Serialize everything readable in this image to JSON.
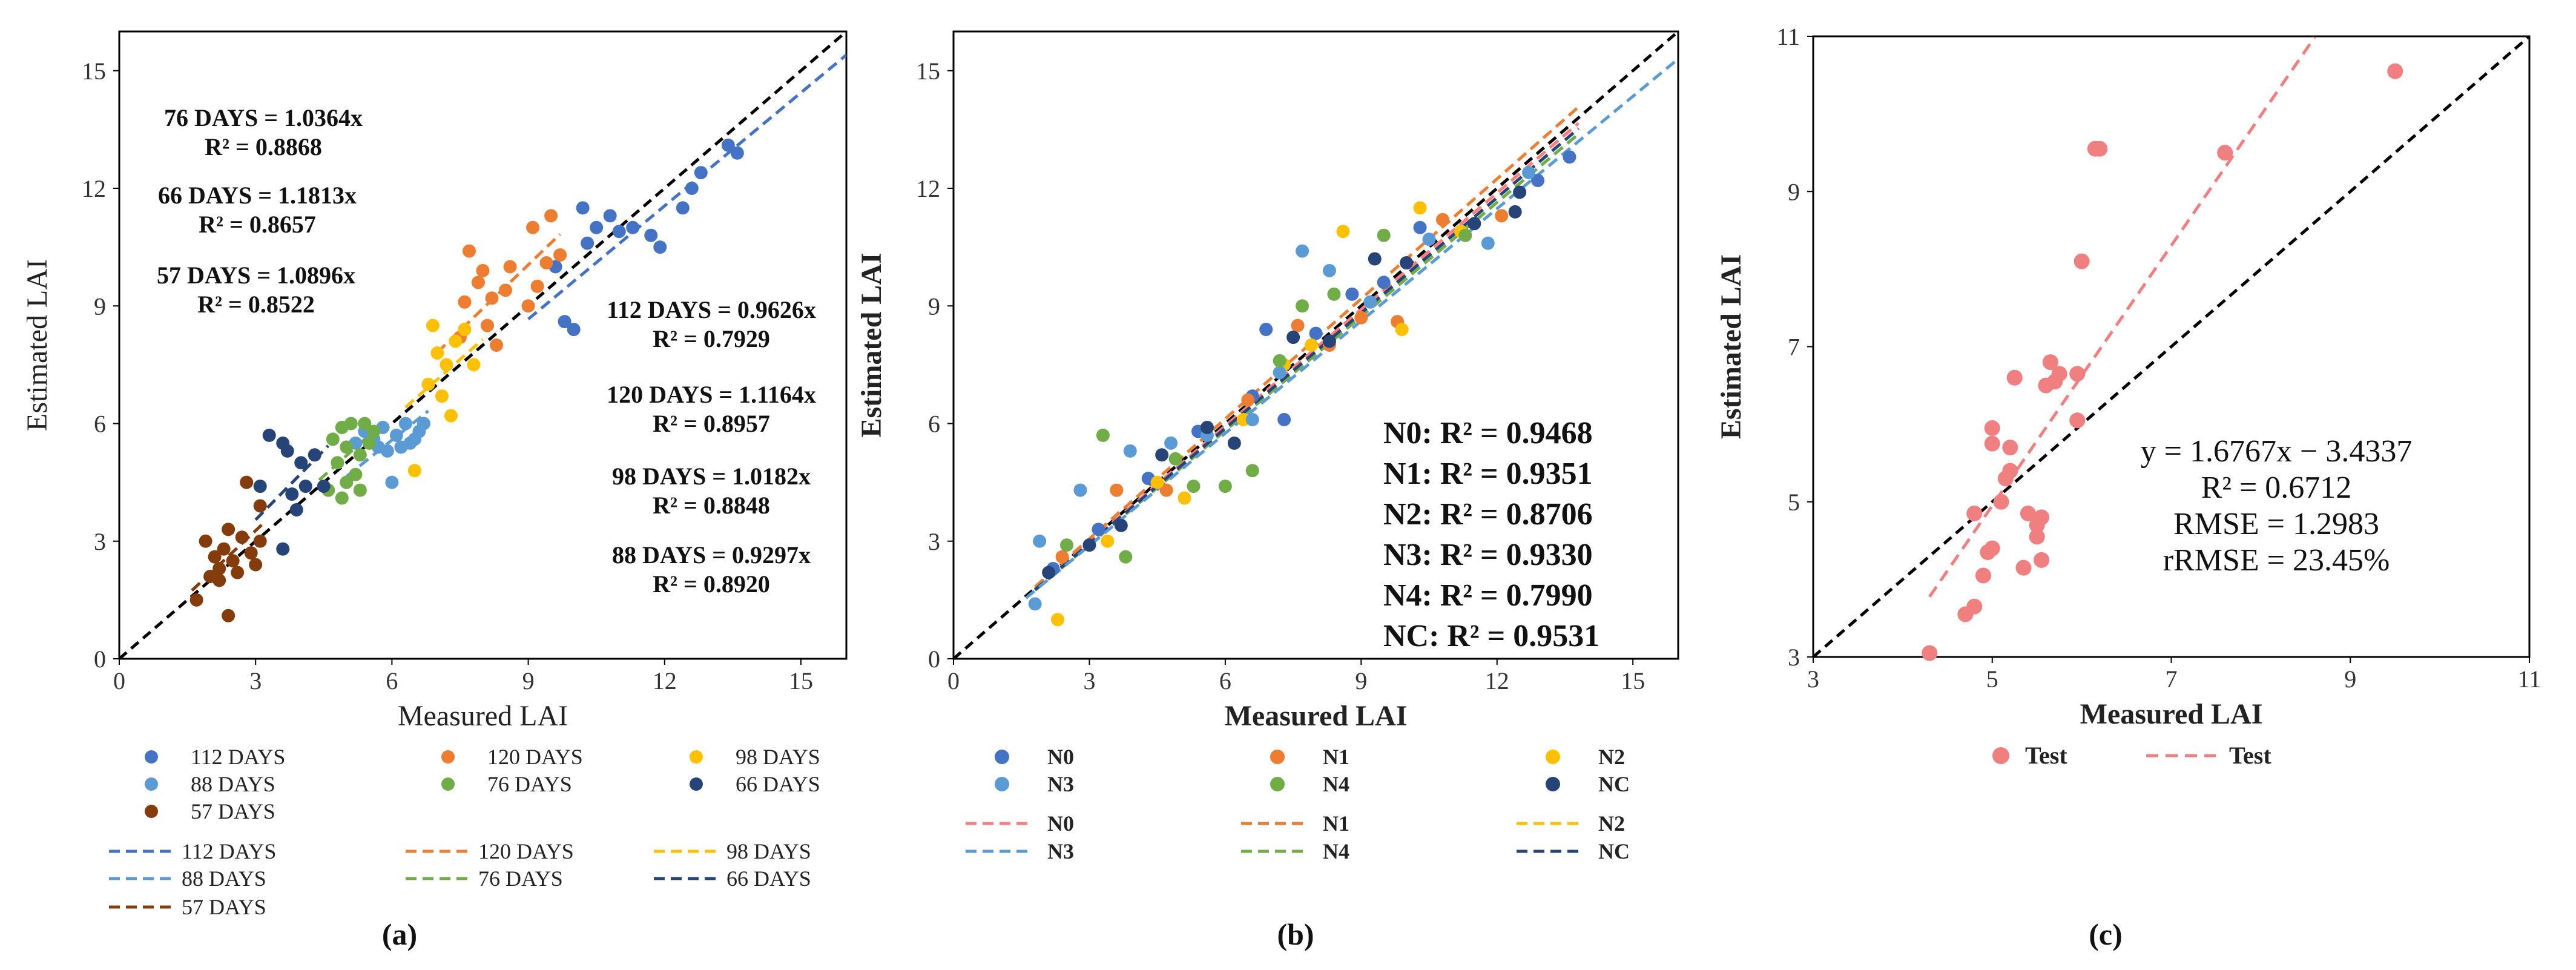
{
  "colors": {
    "c112": "#4472C4",
    "c120": "#ED7D31",
    "c98": "#FFC000",
    "c88": "#5B9BD5",
    "c76": "#70AD47",
    "c66": "#264478",
    "c57": "#843C0C",
    "n0": "#4472C4",
    "n1": "#ED7D31",
    "n2": "#FFC000",
    "n3": "#5B9BD5",
    "n4": "#70AD47",
    "nc": "#264478",
    "n0line": "#FF7C80",
    "test": "#F08080",
    "axis": "#000000",
    "ref": "#000000"
  },
  "chart_data": [
    {
      "id": "a",
      "type": "scatter",
      "panel_label": "(a)",
      "xlabel": "Measured LAI",
      "ylabel": "Estimated LAI",
      "xlim": [
        0,
        16
      ],
      "ylim": [
        0,
        16
      ],
      "xticks": [
        0,
        3,
        6,
        9,
        12,
        15
      ],
      "yticks": [
        0,
        3,
        6,
        9,
        12,
        15
      ],
      "tick_labels": [
        "0",
        "3",
        "6",
        "9",
        "12",
        "15"
      ],
      "reference_line": "1:1",
      "series": [
        {
          "name": "112 DAYS",
          "color_key": "c112",
          "slope": 0.9626,
          "r2": "0.7929",
          "eq_label": "112 DAYS = 0.9626x",
          "r2_label": "R² = 0.7929",
          "points": [
            [
              9.6,
              10.0
            ],
            [
              9.8,
              8.6
            ],
            [
              10.0,
              8.4
            ],
            [
              10.2,
              11.5
            ],
            [
              10.5,
              11.0
            ],
            [
              10.8,
              11.3
            ],
            [
              11.0,
              10.9
            ],
            [
              11.3,
              11.0
            ],
            [
              11.7,
              10.8
            ],
            [
              11.9,
              10.5
            ],
            [
              12.4,
              11.5
            ],
            [
              12.6,
              12.0
            ],
            [
              12.8,
              12.4
            ],
            [
              13.4,
              13.1
            ],
            [
              13.6,
              12.9
            ],
            [
              10.3,
              10.6
            ]
          ]
        },
        {
          "name": "120 DAYS",
          "color_key": "c120",
          "slope": 1.1164,
          "r2": "0.8957",
          "eq_label": "120 DAYS = 1.1164x",
          "r2_label": "R² = 0.8957",
          "points": [
            [
              7.5,
              8.2
            ],
            [
              7.6,
              9.1
            ],
            [
              7.7,
              10.4
            ],
            [
              7.9,
              9.6
            ],
            [
              8.0,
              9.9
            ],
            [
              8.1,
              8.5
            ],
            [
              8.2,
              9.2
            ],
            [
              8.3,
              8.0
            ],
            [
              8.5,
              9.4
            ],
            [
              8.6,
              10.0
            ],
            [
              9.0,
              9.0
            ],
            [
              9.1,
              11.0
            ],
            [
              9.2,
              9.5
            ],
            [
              9.4,
              10.1
            ],
            [
              9.5,
              11.3
            ],
            [
              9.7,
              10.3
            ]
          ]
        },
        {
          "name": "98 DAYS",
          "color_key": "c98",
          "slope": 1.0182,
          "r2": "0.8848",
          "eq_label": "98 DAYS = 1.0182x",
          "r2_label": "R² = 0.8848",
          "points": [
            [
              6.5,
              4.8
            ],
            [
              6.8,
              7.0
            ],
            [
              6.9,
              8.5
            ],
            [
              7.0,
              7.8
            ],
            [
              7.1,
              6.7
            ],
            [
              7.2,
              7.5
            ],
            [
              7.3,
              6.2
            ],
            [
              7.4,
              8.1
            ],
            [
              7.6,
              8.4
            ],
            [
              7.8,
              7.5
            ]
          ]
        },
        {
          "name": "88 DAYS",
          "color_key": "c88",
          "slope": 0.9297,
          "r2": "0.8920",
          "eq_label": "88 DAYS = 0.9297x",
          "r2_label": "R² = 0.8920",
          "points": [
            [
              5.2,
              5.5
            ],
            [
              5.4,
              5.8
            ],
            [
              5.6,
              5.6
            ],
            [
              5.8,
              5.9
            ],
            [
              5.9,
              5.3
            ],
            [
              6.0,
              4.5
            ],
            [
              6.1,
              5.7
            ],
            [
              6.2,
              5.4
            ],
            [
              6.3,
              6.0
            ],
            [
              6.4,
              5.5
            ],
            [
              6.5,
              5.6
            ],
            [
              6.6,
              5.8
            ],
            [
              6.7,
              6.0
            ],
            [
              5.7,
              5.4
            ]
          ]
        },
        {
          "name": "76 DAYS",
          "color_key": "c76",
          "slope": 1.0364,
          "r2": "0.8868",
          "eq_label": "76 DAYS = 1.0364x",
          "r2_label": "R² = 0.8868",
          "points": [
            [
              4.6,
              4.3
            ],
            [
              4.7,
              5.6
            ],
            [
              4.8,
              5.0
            ],
            [
              4.9,
              5.9
            ],
            [
              5.0,
              4.5
            ],
            [
              5.0,
              5.4
            ],
            [
              5.1,
              6.0
            ],
            [
              5.2,
              4.7
            ],
            [
              5.3,
              5.2
            ],
            [
              5.3,
              4.3
            ],
            [
              5.4,
              6.0
            ],
            [
              5.5,
              5.5
            ],
            [
              5.6,
              5.8
            ],
            [
              4.9,
              4.1
            ]
          ]
        },
        {
          "name": "66 DAYS",
          "color_key": "c66",
          "slope": 1.1813,
          "r2": "0.8657",
          "eq_label": "66 DAYS = 1.1813x",
          "r2_label": "R² = 0.8657",
          "points": [
            [
              3.1,
              4.4
            ],
            [
              3.3,
              5.7
            ],
            [
              3.6,
              5.5
            ],
            [
              3.6,
              2.8
            ],
            [
              3.8,
              4.2
            ],
            [
              3.9,
              3.8
            ],
            [
              4.0,
              5.0
            ],
            [
              4.1,
              4.4
            ],
            [
              4.3,
              5.2
            ],
            [
              4.5,
              4.4
            ],
            [
              3.7,
              5.3
            ]
          ]
        },
        {
          "name": "57 DAYS",
          "color_key": "c57",
          "slope": 1.0896,
          "r2": "0.8522",
          "eq_label": "57 DAYS = 1.0896x",
          "r2_label": "R² = 0.8522",
          "points": [
            [
              1.7,
              1.5
            ],
            [
              1.9,
              3.0
            ],
            [
              2.0,
              2.1
            ],
            [
              2.1,
              2.6
            ],
            [
              2.2,
              2.3
            ],
            [
              2.3,
              2.8
            ],
            [
              2.4,
              3.3
            ],
            [
              2.4,
              1.1
            ],
            [
              2.5,
              2.5
            ],
            [
              2.6,
              2.2
            ],
            [
              2.7,
              3.1
            ],
            [
              2.8,
              4.5
            ],
            [
              2.9,
              2.7
            ],
            [
              3.0,
              2.4
            ],
            [
              3.1,
              3.0
            ],
            [
              3.1,
              3.9
            ],
            [
              2.2,
              2.0
            ]
          ]
        }
      ]
    },
    {
      "id": "b",
      "type": "scatter",
      "panel_label": "(b)",
      "xlabel": "Measured LAI",
      "ylabel": "Estimated LAI",
      "xlim": [
        0,
        16
      ],
      "ylim": [
        0,
        16
      ],
      "xticks": [
        0,
        3,
        6,
        9,
        12,
        15
      ],
      "yticks": [
        0,
        3,
        6,
        9,
        12,
        15
      ],
      "tick_labels": [
        "0",
        "3",
        "6",
        "9",
        "12",
        "15"
      ],
      "reference_line": "1:1",
      "series": [
        {
          "name": "N0",
          "color_key": "n0",
          "line_color_key": "n0line",
          "slope": 0.99,
          "r2": "0.9468",
          "r2_label": "N0: R² = 0.9468",
          "points": [
            [
              2.2,
              2.3
            ],
            [
              3.2,
              3.3
            ],
            [
              4.3,
              4.6
            ],
            [
              5.4,
              5.8
            ],
            [
              6.6,
              6.7
            ],
            [
              6.9,
              8.4
            ],
            [
              7.3,
              6.1
            ],
            [
              8.0,
              8.3
            ],
            [
              8.8,
              9.3
            ],
            [
              9.5,
              9.6
            ],
            [
              10.3,
              11.0
            ],
            [
              12.9,
              12.2
            ],
            [
              13.6,
              12.8
            ]
          ]
        },
        {
          "name": "N1",
          "color_key": "n1",
          "line_color_key": "n1",
          "slope": 1.02,
          "r2": "0.9351",
          "r2_label": "N1: R² = 0.9351",
          "points": [
            [
              2.4,
              2.6
            ],
            [
              3.6,
              4.3
            ],
            [
              4.7,
              4.3
            ],
            [
              5.6,
              5.9
            ],
            [
              6.5,
              6.6
            ],
            [
              7.6,
              8.5
            ],
            [
              8.3,
              8.0
            ],
            [
              9.0,
              8.7
            ],
            [
              9.8,
              8.6
            ],
            [
              10.8,
              11.2
            ],
            [
              12.1,
              11.3
            ]
          ]
        },
        {
          "name": "N2",
          "color_key": "n2",
          "line_color_key": "n2",
          "slope": 0.98,
          "r2": "0.8706",
          "r2_label": "N2: R² = 0.8706",
          "points": [
            [
              2.3,
              1.0
            ],
            [
              3.4,
              3.0
            ],
            [
              4.5,
              4.5
            ],
            [
              5.1,
              4.1
            ],
            [
              6.4,
              6.1
            ],
            [
              7.3,
              7.5
            ],
            [
              7.9,
              8.0
            ],
            [
              8.6,
              10.9
            ],
            [
              9.9,
              8.4
            ],
            [
              10.3,
              11.5
            ],
            [
              11.2,
              10.9
            ]
          ]
        },
        {
          "name": "N3",
          "color_key": "n3",
          "line_color_key": "n3",
          "slope": 0.97,
          "r2": "0.9330",
          "r2_label": "N3: R² = 0.9330",
          "points": [
            [
              1.8,
              1.4
            ],
            [
              1.9,
              3.0
            ],
            [
              2.8,
              4.3
            ],
            [
              3.9,
              5.3
            ],
            [
              4.8,
              5.5
            ],
            [
              5.6,
              5.7
            ],
            [
              6.6,
              6.1
            ],
            [
              7.2,
              7.3
            ],
            [
              7.7,
              10.4
            ],
            [
              8.3,
              9.9
            ],
            [
              9.2,
              9.1
            ],
            [
              10.5,
              10.7
            ],
            [
              11.8,
              10.6
            ],
            [
              12.7,
              12.4
            ]
          ]
        },
        {
          "name": "N4",
          "color_key": "n4",
          "line_color_key": "n4",
          "slope": 0.97,
          "r2": "0.7990",
          "r2_label": "N4: R² = 0.7990",
          "points": [
            [
              2.5,
              2.9
            ],
            [
              3.3,
              5.7
            ],
            [
              3.8,
              2.6
            ],
            [
              4.9,
              5.1
            ],
            [
              5.3,
              4.4
            ],
            [
              6.0,
              4.4
            ],
            [
              6.6,
              4.8
            ],
            [
              7.2,
              7.6
            ],
            [
              7.7,
              9.0
            ],
            [
              8.4,
              9.3
            ],
            [
              9.5,
              10.8
            ],
            [
              11.3,
              10.8
            ]
          ]
        },
        {
          "name": "NC",
          "color_key": "nc",
          "line_color_key": "nc",
          "slope": 0.98,
          "r2": "0.9531",
          "r2_label": "NC: R² = 0.9531",
          "points": [
            [
              2.1,
              2.2
            ],
            [
              3.0,
              2.9
            ],
            [
              3.7,
              3.4
            ],
            [
              4.6,
              5.2
            ],
            [
              5.6,
              5.9
            ],
            [
              6.2,
              5.5
            ],
            [
              7.5,
              8.2
            ],
            [
              8.3,
              8.1
            ],
            [
              9.3,
              10.2
            ],
            [
              10.0,
              10.1
            ],
            [
              11.5,
              11.1
            ],
            [
              12.4,
              11.4
            ],
            [
              12.5,
              11.9
            ]
          ]
        }
      ]
    },
    {
      "id": "c",
      "type": "scatter",
      "panel_label": "(c)",
      "xlabel": "Measured LAI",
      "ylabel": "Estimated LAI",
      "xlim": [
        3,
        11
      ],
      "ylim": [
        3,
        11
      ],
      "xticks": [
        3,
        5,
        7,
        9,
        11
      ],
      "yticks": [
        3,
        5,
        7,
        9,
        11
      ],
      "tick_labels": [
        "3",
        "5",
        "7",
        "9",
        "11"
      ],
      "reference_line": "1:1",
      "series": [
        {
          "name": "Test",
          "color_key": "test",
          "fit": {
            "slope": 1.6767,
            "intercept": -3.4337,
            "x_from": 4.3,
            "x_to": 8.6
          },
          "points": [
            [
              4.3,
              3.05
            ],
            [
              4.7,
              3.55
            ],
            [
              4.8,
              3.65
            ],
            [
              4.9,
              4.05
            ],
            [
              4.95,
              4.35
            ],
            [
              5.0,
              4.4
            ],
            [
              4.8,
              4.85
            ],
            [
              5.1,
              5.0
            ],
            [
              5.15,
              5.3
            ],
            [
              5.2,
              5.4
            ],
            [
              5.0,
              5.75
            ],
            [
              5.0,
              5.95
            ],
            [
              5.2,
              5.7
            ],
            [
              5.25,
              6.6
            ],
            [
              5.35,
              4.15
            ],
            [
              5.4,
              4.85
            ],
            [
              5.5,
              4.7
            ],
            [
              5.5,
              4.55
            ],
            [
              5.55,
              4.8
            ],
            [
              5.55,
              4.25
            ],
            [
              5.6,
              6.5
            ],
            [
              5.65,
              6.8
            ],
            [
              5.7,
              6.55
            ],
            [
              5.75,
              6.65
            ],
            [
              5.95,
              6.05
            ],
            [
              5.95,
              6.65
            ],
            [
              6.0,
              8.1
            ],
            [
              6.15,
              9.55
            ],
            [
              6.2,
              9.55
            ],
            [
              7.6,
              9.5
            ],
            [
              9.5,
              10.55
            ]
          ]
        }
      ],
      "annotation": {
        "equation": "y = 1.6767x − 3.4337",
        "r2": "R² = 0.6712",
        "rmse": "RMSE = 1.2983",
        "rrmse": "rRMSE = 23.45%"
      }
    }
  ],
  "legends": {
    "a": {
      "markers": [
        "112 DAYS",
        "120 DAYS",
        "98 DAYS",
        "88 DAYS",
        "76 DAYS",
        "66 DAYS",
        "57 DAYS"
      ],
      "lines": [
        "112 DAYS",
        "120 DAYS",
        "98 DAYS",
        "88 DAYS",
        "76 DAYS",
        "66 DAYS",
        "57 DAYS"
      ]
    },
    "b": {
      "markers": [
        "N0",
        "N1",
        "N2",
        "N3",
        "N4",
        "NC"
      ],
      "lines": [
        "N0",
        "N1",
        "N2",
        "N3",
        "N4",
        "NC"
      ]
    },
    "c": {
      "marker": "Test",
      "line": "Test"
    }
  }
}
